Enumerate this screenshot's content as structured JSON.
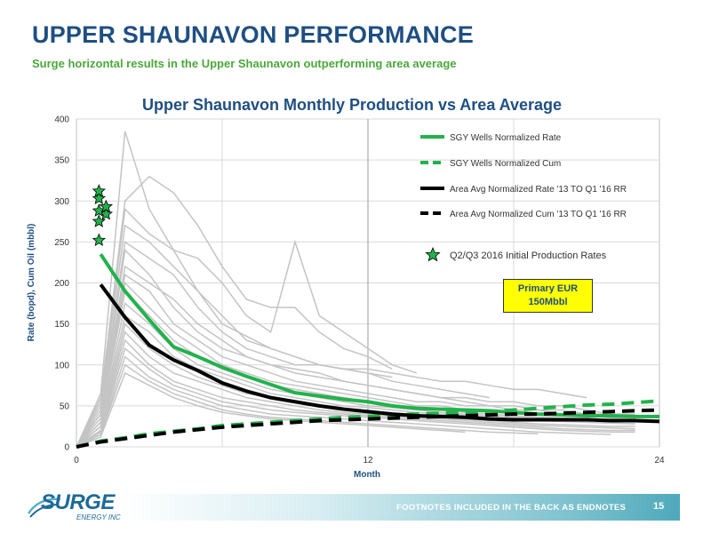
{
  "slide": {
    "title": "UPPER SHAUNAVON PERFORMANCE",
    "subtitle": "Surge horizontal results in the Upper Shaunavon outperforming area average",
    "eur_box": [
      "Primary EUR",
      "150Mbbl"
    ],
    "footer_note": "FOOTNOTES INCLUDED IN THE BACK AS ENDNOTES",
    "page_number": "15",
    "logo": {
      "word": "SURGE",
      "sub": "ENERGY INC"
    }
  },
  "colors": {
    "title_blue": "#1f4f82",
    "subtitle_green": "#4aa83a",
    "sgy_green": "#22b24c",
    "area_black": "#000000",
    "well_gray": "#c4c4c4",
    "eur_yellow": "#ffff00"
  },
  "chart_data": {
    "type": "line",
    "title": "Upper Shaunavon Monthly Production vs Area Average",
    "xlabel": "Month",
    "ylabel": "Rate (bopd), Cum Oil (mbbl)",
    "xlim": [
      0,
      24
    ],
    "ylim": [
      0,
      400
    ],
    "xticks": [
      0,
      12,
      24
    ],
    "yticks": [
      0,
      50,
      100,
      150,
      200,
      250,
      300,
      350,
      400
    ],
    "grid": true,
    "legend_position": "top-right",
    "legend": [
      "SGY Wells Normalized Rate",
      "SGY Wells Normalized Cum",
      "Area Avg Normalized Rate '13 TO Q1 '16 RR",
      "Area Avg Normalized Cum '13 TO Q1 '16 RR",
      "Q2/Q3 2016 Initial Production Rates"
    ],
    "series": [
      {
        "name": "SGY Wells Normalized Rate",
        "style": "solid",
        "color": "#22b24c",
        "x": [
          1,
          2,
          3,
          4,
          5,
          6,
          7,
          8,
          9,
          10,
          11,
          12,
          13,
          14,
          15,
          16,
          17,
          18,
          19,
          20,
          21,
          22,
          23,
          24
        ],
        "y": [
          235,
          190,
          155,
          122,
          110,
          97,
          86,
          76,
          66,
          62,
          58,
          55,
          50,
          47,
          46,
          45,
          44,
          42,
          40,
          39,
          38,
          38,
          37,
          37
        ]
      },
      {
        "name": "SGY Wells Normalized Cum",
        "style": "dashed",
        "color": "#22b24c",
        "x": [
          0,
          1,
          2,
          3,
          4,
          5,
          6,
          7,
          8,
          9,
          10,
          11,
          12,
          13,
          14,
          15,
          16,
          17,
          18,
          19,
          20,
          21,
          22,
          23,
          24
        ],
        "y": [
          0,
          7,
          11,
          16,
          19,
          22,
          26,
          28,
          30,
          32,
          34,
          36,
          37,
          39,
          40,
          41,
          42,
          43,
          45,
          47,
          49,
          51,
          52,
          54,
          56
        ]
      },
      {
        "name": "Area Avg Normalized Rate '13 TO Q1 '16 RR",
        "style": "solid",
        "color": "#000000",
        "x": [
          1,
          2,
          3,
          4,
          5,
          6,
          7,
          8,
          9,
          10,
          11,
          12,
          13,
          14,
          15,
          16,
          17,
          18,
          19,
          20,
          21,
          22,
          23,
          24
        ],
        "y": [
          198,
          158,
          124,
          106,
          93,
          78,
          68,
          60,
          55,
          50,
          46,
          43,
          40,
          38,
          37,
          36,
          34,
          33,
          33,
          33,
          33,
          32,
          32,
          31
        ]
      },
      {
        "name": "Area Avg Normalized Cum '13 TO Q1 '16 RR",
        "style": "dashed",
        "color": "#000000",
        "x": [
          0,
          1,
          2,
          3,
          4,
          5,
          6,
          7,
          8,
          9,
          10,
          11,
          12,
          13,
          14,
          15,
          16,
          17,
          18,
          19,
          20,
          21,
          22,
          23,
          24
        ],
        "y": [
          0,
          6,
          10,
          14,
          18,
          21,
          24,
          26,
          28,
          30,
          32,
          33,
          34,
          35,
          36,
          37,
          38,
          39,
          40,
          40,
          41,
          42,
          43,
          44,
          45
        ]
      }
    ],
    "initial_rates": {
      "x": 1,
      "y": [
        252,
        275,
        284,
        288,
        293,
        303,
        312
      ]
    },
    "individual_wells": [
      [
        0,
        65,
        385,
        290,
        240,
        190,
        150,
        135,
        120,
        110,
        100,
        95,
        90,
        85
      ],
      [
        0,
        60,
        300,
        330,
        310,
        270,
        220,
        180,
        170,
        170,
        140,
        120,
        110,
        95
      ],
      [
        0,
        55,
        290,
        260,
        240,
        230,
        200,
        160,
        140,
        250,
        160,
        140,
        120,
        100,
        90
      ],
      [
        0,
        50,
        270,
        250,
        220,
        190,
        160,
        130,
        120,
        110,
        100,
        95,
        90,
        80,
        75,
        70,
        65,
        60
      ],
      [
        0,
        45,
        250,
        230,
        210,
        170,
        140,
        120,
        110,
        100,
        100,
        95,
        95,
        90,
        85,
        80,
        80,
        75,
        70,
        70,
        65,
        60
      ],
      [
        0,
        40,
        240,
        210,
        170,
        140,
        120,
        110,
        100,
        90,
        85,
        80,
        75,
        70,
        65,
        60,
        60,
        55,
        55,
        50,
        50,
        45,
        40,
        40
      ],
      [
        0,
        40,
        220,
        200,
        180,
        150,
        130,
        110,
        100,
        95,
        90,
        80,
        75,
        70,
        65,
        60,
        55,
        50,
        50,
        45,
        45,
        40,
        40,
        38
      ],
      [
        0,
        35,
        210,
        190,
        150,
        130,
        110,
        100,
        90,
        80,
        75,
        70,
        65,
        60,
        55,
        55,
        50,
        50,
        45,
        45,
        40,
        40,
        35,
        35
      ],
      [
        0,
        30,
        200,
        170,
        140,
        120,
        100,
        90,
        80,
        75,
        70,
        65,
        60,
        55,
        50,
        50,
        45,
        45,
        40,
        40,
        38,
        38,
        36,
        35
      ],
      [
        0,
        30,
        190,
        160,
        130,
        110,
        95,
        85,
        75,
        70,
        65,
        60,
        55,
        50,
        48,
        45,
        42,
        40,
        38,
        36,
        35,
        34,
        33,
        32
      ],
      [
        0,
        25,
        175,
        150,
        120,
        100,
        90,
        80,
        70,
        65,
        60,
        55,
        50,
        48,
        45,
        42,
        40,
        38,
        36,
        34,
        32,
        30,
        29,
        28
      ],
      [
        0,
        25,
        160,
        140,
        110,
        95,
        85,
        75,
        65,
        60,
        55,
        50,
        48,
        45,
        42,
        40,
        38,
        36,
        34,
        32,
        31,
        30,
        29,
        28
      ],
      [
        0,
        20,
        150,
        120,
        100,
        85,
        75,
        65,
        60,
        55,
        50,
        45,
        42,
        40,
        38,
        36,
        34,
        32,
        30,
        28,
        27,
        26,
        25,
        25
      ],
      [
        0,
        20,
        140,
        110,
        90,
        80,
        70,
        60,
        55,
        50,
        45,
        42,
        40,
        38,
        36,
        34,
        32,
        30,
        28,
        26,
        25,
        24,
        23,
        22
      ],
      [
        0,
        18,
        130,
        100,
        80,
        70,
        60,
        55,
        50,
        45,
        42,
        40,
        38,
        36,
        34,
        32,
        30,
        28,
        26,
        24,
        22,
        21,
        20,
        20
      ],
      [
        0,
        18,
        120,
        95,
        75,
        65,
        55,
        50,
        45,
        42,
        40,
        38,
        36,
        34,
        32,
        30,
        28,
        26,
        24,
        22,
        20,
        19,
        18,
        18
      ],
      [
        0,
        15,
        110,
        85,
        70,
        60,
        50,
        45,
        40,
        38,
        36,
        34,
        32,
        30,
        28,
        26,
        24,
        22,
        20,
        18,
        17,
        16,
        15
      ],
      [
        0,
        15,
        100,
        80,
        65,
        55,
        45,
        40,
        36,
        34,
        32,
        30,
        28,
        26,
        24,
        22,
        20,
        18,
        17,
        16
      ],
      [
        0,
        12,
        90,
        75,
        60,
        50,
        42,
        38,
        34,
        32,
        30,
        28,
        26,
        24,
        22,
        20,
        18
      ]
    ]
  }
}
